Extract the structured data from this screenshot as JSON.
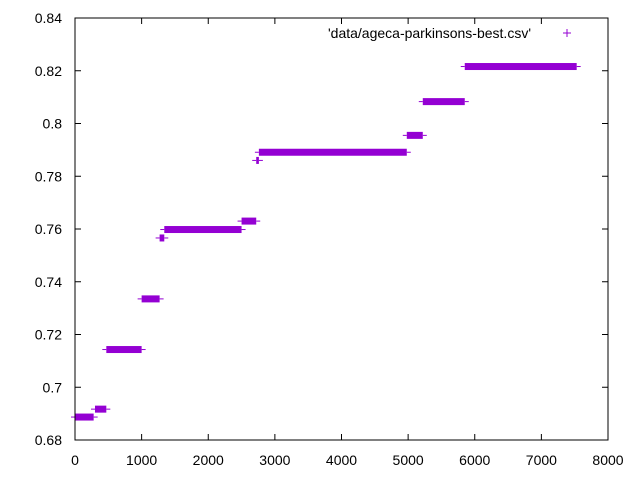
{
  "chart_data": {
    "type": "scatter",
    "title": "",
    "xlabel": "",
    "ylabel": "",
    "xlim": [
      0,
      8000
    ],
    "ylim": [
      0.68,
      0.84
    ],
    "x_ticks": [
      0,
      1000,
      2000,
      3000,
      4000,
      5000,
      6000,
      7000,
      8000
    ],
    "x_tick_labels": [
      "0",
      "1000",
      "2000",
      "3000",
      "4000",
      "5000",
      "6000",
      "7000",
      "8000"
    ],
    "y_ticks": [
      0.68,
      0.7,
      0.72,
      0.74,
      0.76,
      0.78,
      0.8,
      0.82,
      0.84
    ],
    "y_tick_labels": [
      "0.68",
      "0.7",
      "0.72",
      "0.74",
      "0.76",
      "0.78",
      "0.8",
      "0.82",
      "0.84"
    ],
    "grid": false,
    "legend_position": "top-right",
    "marker": "+",
    "color": "#9400d3",
    "series": [
      {
        "name": "'data/ageca-parkinsons-best.csv'",
        "segments": [
          {
            "x_start": 0,
            "x_end": 280,
            "y": 0.6887
          },
          {
            "x_start": 300,
            "x_end": 470,
            "y": 0.6917
          },
          {
            "x_start": 470,
            "x_end": 1000,
            "y": 0.7143
          },
          {
            "x_start": 1000,
            "x_end": 1270,
            "y": 0.7335
          },
          {
            "x_start": 1270,
            "x_end": 1340,
            "y": 0.7566
          },
          {
            "x_start": 1340,
            "x_end": 2500,
            "y": 0.7598
          },
          {
            "x_start": 2500,
            "x_end": 2720,
            "y": 0.763
          },
          {
            "x_start": 2720,
            "x_end": 2760,
            "y": 0.786
          },
          {
            "x_start": 2760,
            "x_end": 4980,
            "y": 0.7891
          },
          {
            "x_start": 4980,
            "x_end": 5220,
            "y": 0.7955
          },
          {
            "x_start": 5220,
            "x_end": 5850,
            "y": 0.8083
          },
          {
            "x_start": 5850,
            "x_end": 7530,
            "y": 0.8216
          }
        ]
      }
    ]
  }
}
